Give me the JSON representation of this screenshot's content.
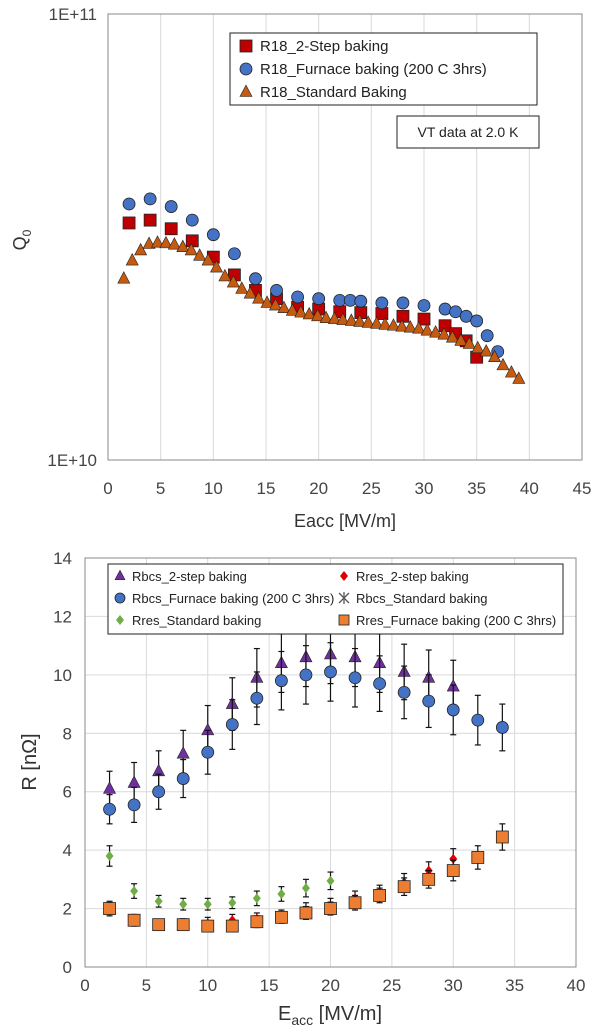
{
  "chart_data": [
    {
      "type": "scatter",
      "title": "",
      "xlabel": "Eacc [MV/m]",
      "ylabel": "Q",
      "ylabel_sub": "0",
      "x_range": [
        0,
        45
      ],
      "x_ticks": [
        "0",
        "5",
        "10",
        "15",
        "20",
        "25",
        "30",
        "35",
        "40",
        "45"
      ],
      "y_range": [
        10000000000.0,
        100000000000.0
      ],
      "y_scale": "log",
      "y_ticks": [
        "1E+10",
        "1E+11"
      ],
      "grid": "vertical",
      "legend_placement": "top-right",
      "annotation": "VT data at 2.0 K",
      "series": [
        {
          "name": "R18_2-Step baking",
          "marker": "square",
          "color": "#c00000",
          "x": [
            2,
            4,
            6,
            8,
            10,
            12,
            14,
            16,
            18,
            20,
            22,
            24,
            26,
            28,
            30,
            32,
            33,
            34,
            35
          ],
          "y": [
            34000000000.0,
            34500000000.0,
            33000000000.0,
            31000000000.0,
            28500000000.0,
            26000000000.0,
            24000000000.0,
            23000000000.0,
            22000000000.0,
            21800000000.0,
            21500000000.0,
            21400000000.0,
            21300000000.0,
            21000000000.0,
            20700000000.0,
            20000000000.0,
            19200000000.0,
            18500000000.0,
            17000000000.0
          ]
        },
        {
          "name": "R18_Furnace baking (200 C 3hrs)",
          "marker": "circle",
          "color": "#4472c4",
          "x": [
            2,
            4,
            6,
            8,
            10,
            12,
            14,
            16,
            18,
            20,
            22,
            23,
            24,
            26,
            28,
            30,
            32,
            33,
            34,
            35,
            36,
            37
          ],
          "y": [
            37500000000.0,
            38500000000.0,
            37000000000.0,
            34500000000.0,
            32000000000.0,
            29000000000.0,
            25500000000.0,
            24000000000.0,
            23200000000.0,
            23000000000.0,
            22800000000.0,
            22800000000.0,
            22700000000.0,
            22500000000.0,
            22500000000.0,
            22200000000.0,
            21800000000.0,
            21500000000.0,
            21000000000.0,
            20500000000.0,
            19000000000.0,
            17500000000.0
          ]
        },
        {
          "name": "R18_Standard Baking",
          "marker": "triangle",
          "color": "#c55a11",
          "x": [
            1.5,
            2.3,
            3.1,
            3.9,
            4.7,
            5.5,
            6.3,
            7.1,
            7.9,
            8.7,
            9.5,
            10.3,
            11.1,
            11.9,
            12.7,
            13.5,
            14.3,
            15.1,
            15.9,
            16.7,
            17.5,
            18.3,
            19.1,
            19.9,
            20.7,
            21.5,
            22.3,
            23.1,
            23.9,
            24.7,
            25.5,
            26.3,
            27.1,
            27.9,
            28.7,
            29.5,
            30.3,
            31.1,
            31.9,
            32.7,
            33.5,
            34.3,
            35.1,
            35.9,
            36.7,
            37.5,
            38.3,
            39.0
          ],
          "y": [
            25500000000.0,
            28000000000.0,
            29500000000.0,
            30500000000.0,
            30700000000.0,
            30600000000.0,
            30400000000.0,
            30000000000.0,
            29500000000.0,
            28700000000.0,
            28000000000.0,
            27000000000.0,
            25800000000.0,
            25000000000.0,
            24200000000.0,
            23600000000.0,
            23000000000.0,
            22500000000.0,
            22200000000.0,
            21900000000.0,
            21600000000.0,
            21400000000.0,
            21200000000.0,
            21000000000.0,
            20800000000.0,
            20700000000.0,
            20600000000.0,
            20500000000.0,
            20400000000.0,
            20300000000.0,
            20200000000.0,
            20100000000.0,
            20000000000.0,
            19900000000.0,
            19800000000.0,
            19700000000.0,
            19500000000.0,
            19300000000.0,
            19100000000.0,
            18800000000.0,
            18500000000.0,
            18200000000.0,
            17800000000.0,
            17500000000.0,
            17000000000.0,
            16300000000.0,
            15700000000.0,
            15200000000.0
          ]
        }
      ]
    },
    {
      "type": "scatter",
      "title": "",
      "xlabel": "E",
      "xlabel_sub": "acc",
      "xlabel_unit": " [MV/m]",
      "ylabel": "R [nΩ]",
      "x_range": [
        0,
        40
      ],
      "x_ticks": [
        "0",
        "5",
        "10",
        "15",
        "20",
        "25",
        "30",
        "35",
        "40"
      ],
      "y_range": [
        0,
        14
      ],
      "y_ticks": [
        "0",
        "2",
        "4",
        "6",
        "8",
        "10",
        "12",
        "14"
      ],
      "grid": "both",
      "legend_placement": "top",
      "series": [
        {
          "name": "Rbcs_2-step baking",
          "marker": "triangle",
          "color": "#7030a0",
          "x": [
            2,
            4,
            6,
            8,
            10,
            12,
            14,
            16,
            18,
            20,
            22,
            24,
            26,
            28,
            30
          ],
          "y": [
            6.1,
            6.3,
            6.7,
            7.3,
            8.1,
            9.0,
            9.9,
            10.4,
            10.6,
            10.7,
            10.6,
            10.4,
            10.1,
            9.9,
            9.6
          ],
          "err": [
            0.6,
            0.7,
            0.7,
            0.8,
            0.85,
            0.9,
            1.0,
            1.0,
            1.0,
            1.0,
            1.0,
            1.0,
            0.95,
            0.95,
            0.9
          ]
        },
        {
          "name": "Rres_2-step baking",
          "marker": "diamond",
          "color": "#e00000",
          "x": [
            2,
            4,
            6,
            8,
            10,
            12,
            14,
            16,
            18,
            20,
            22,
            24,
            26,
            28,
            30
          ],
          "y": [
            2.0,
            1.6,
            1.45,
            1.5,
            1.5,
            1.6,
            1.65,
            1.75,
            1.95,
            2.1,
            2.35,
            2.55,
            2.9,
            3.3,
            3.7
          ],
          "err": [
            0.25,
            0.2,
            0.15,
            0.15,
            0.2,
            0.2,
            0.2,
            0.2,
            0.25,
            0.25,
            0.25,
            0.25,
            0.3,
            0.3,
            0.35
          ]
        },
        {
          "name": "Rbcs_Furnace baking (200 C 3hrs)",
          "marker": "circle",
          "color": "#4472c4",
          "x": [
            2,
            4,
            6,
            8,
            10,
            12,
            14,
            16,
            18,
            20,
            22,
            24,
            26,
            28,
            30,
            32,
            34
          ],
          "y": [
            5.4,
            5.55,
            6.0,
            6.45,
            7.35,
            8.3,
            9.2,
            9.8,
            10.0,
            10.1,
            9.9,
            9.7,
            9.4,
            9.1,
            8.8,
            8.45,
            8.2
          ],
          "err": [
            0.5,
            0.6,
            0.6,
            0.65,
            0.75,
            0.85,
            0.9,
            1.0,
            1.0,
            1.0,
            1.0,
            0.95,
            0.9,
            0.9,
            0.85,
            0.85,
            0.8
          ]
        },
        {
          "name": "Rbcs_Standard baking",
          "marker": "star",
          "color": "#595959",
          "x": [],
          "y": [],
          "err": []
        },
        {
          "name": "Rres_Standard baking",
          "marker": "diamond",
          "color": "#70ad47",
          "x": [
            2,
            4,
            6,
            8,
            10,
            12,
            14,
            16,
            18,
            20
          ],
          "y": [
            3.8,
            2.6,
            2.25,
            2.15,
            2.15,
            2.2,
            2.35,
            2.5,
            2.7,
            2.95
          ],
          "err": [
            0.35,
            0.25,
            0.2,
            0.2,
            0.2,
            0.2,
            0.25,
            0.25,
            0.3,
            0.3
          ]
        },
        {
          "name": "Rres_Furnace baking (200 C 3hrs)",
          "marker": "square",
          "color": "#ed7d31",
          "x": [
            2,
            4,
            6,
            8,
            10,
            12,
            14,
            16,
            18,
            20,
            22,
            24,
            26,
            28,
            30,
            32,
            34
          ],
          "y": [
            2.0,
            1.6,
            1.45,
            1.45,
            1.4,
            1.4,
            1.55,
            1.7,
            1.85,
            2.0,
            2.2,
            2.45,
            2.75,
            3.0,
            3.3,
            3.75,
            4.45
          ],
          "err": [
            0.2,
            0.18,
            0.15,
            0.15,
            0.18,
            0.18,
            0.2,
            0.2,
            0.22,
            0.22,
            0.25,
            0.25,
            0.3,
            0.3,
            0.35,
            0.4,
            0.45
          ]
        }
      ]
    }
  ]
}
